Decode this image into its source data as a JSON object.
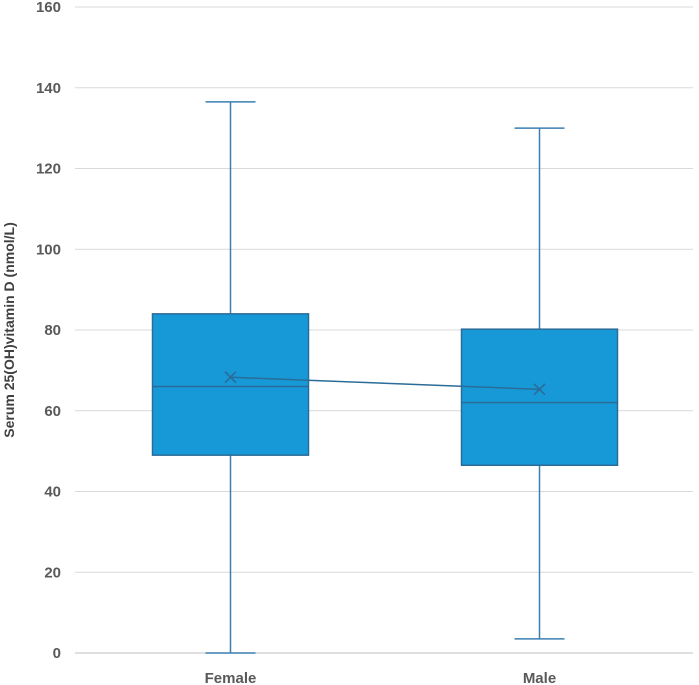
{
  "chart_data": {
    "type": "box",
    "title": "",
    "xlabel": "",
    "ylabel": "Serum 25(OH)vitamin D (nmol/L)",
    "ylim": [
      0,
      160
    ],
    "yticks": [
      0,
      20,
      40,
      60,
      80,
      100,
      120,
      140,
      160
    ],
    "grid": true,
    "legend": "none",
    "categories": [
      "Female",
      "Male"
    ],
    "boxes": [
      {
        "category": "Female",
        "min": 0,
        "q1": 49,
        "median": 66,
        "mean": 68.3,
        "q3": 84,
        "max": 136.5
      },
      {
        "category": "Male",
        "min": 3.5,
        "q1": 46.5,
        "median": 62,
        "mean": 65.3,
        "q3": 80.2,
        "max": 130
      }
    ],
    "mean_line": true,
    "colors": {
      "box_fill": "#1799d8",
      "box_stroke": "#2a6b98",
      "whisker": "#3a7fb0",
      "gridline": "#d9d9d9",
      "axis": "#bfbfbf",
      "text": "#595959"
    }
  }
}
